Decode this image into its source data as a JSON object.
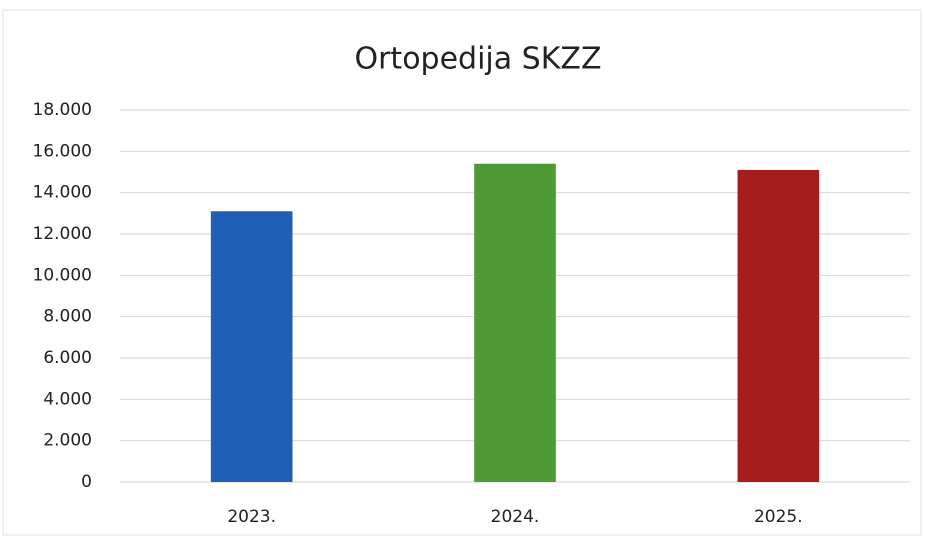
{
  "chart_data": {
    "type": "bar",
    "title": "Ortopedija SKZZ",
    "categories": [
      "2023.",
      "2024.",
      "2025."
    ],
    "values": [
      13100,
      15400,
      15100
    ],
    "colors": [
      "#1f5fb5",
      "#4f9a34",
      "#a51d1d"
    ],
    "ylim": [
      0,
      18000
    ],
    "yticks": [
      0,
      {
        "value": 2000,
        "label": "2.000"
      },
      {
        "value": 4000,
        "label": "4.000"
      },
      {
        "value": 6000,
        "label": "6.000"
      },
      {
        "value": 8000,
        "label": "8.000"
      },
      {
        "value": 10000,
        "label": "10.000"
      },
      {
        "value": 12000,
        "label": "12.000"
      },
      {
        "value": 14000,
        "label": "14.000"
      },
      {
        "value": 16000,
        "label": "16.000"
      },
      {
        "value": 18000,
        "label": "18.000"
      }
    ],
    "grid": true
  }
}
